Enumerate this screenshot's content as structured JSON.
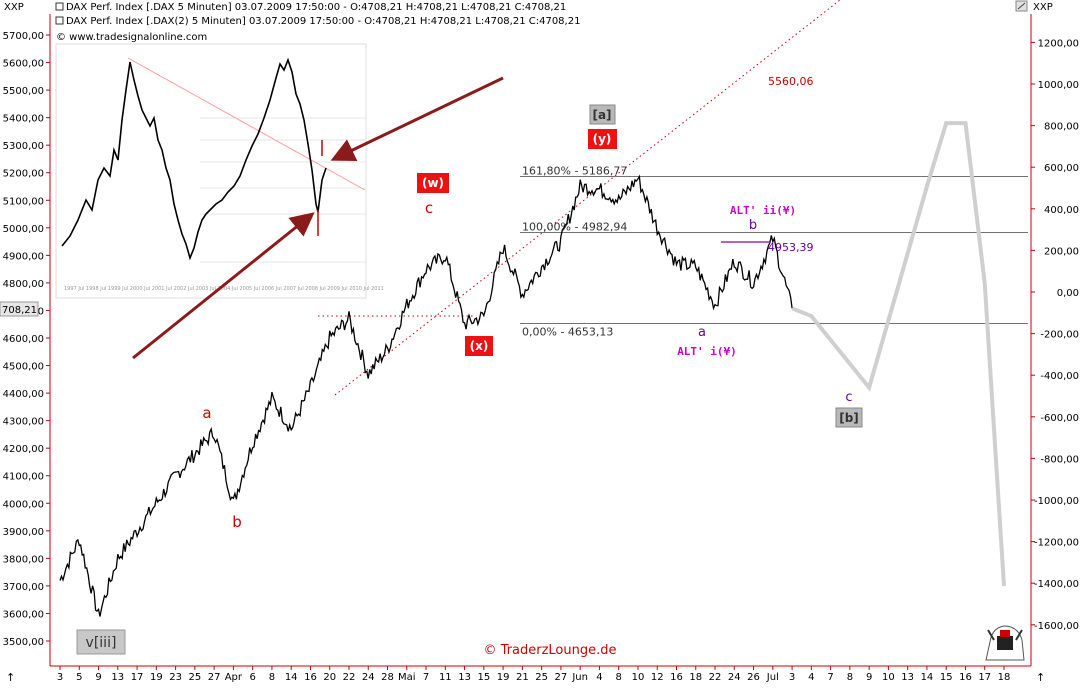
{
  "header": {
    "scale_left_label": "XXP",
    "scale_right_label": "XXP",
    "line1": "DAX Perf. Index [.DAX  5 Minuten] 03.07.2009 17:50:00 - O:4708,21 H:4708,21 L:4708,21 C:4708,21",
    "line2": "DAX Perf. Index [.DAX(2)  5 Minuten] 03.07.2009 17:50:00 - O:4708,21 H:4708,21 L:4708,21 C:4708,21",
    "source": "© www.tradesignalonline.com",
    "last_price_tag": "708,21"
  },
  "watermark": "© TraderzLounge.de",
  "chart_data": {
    "type": "line",
    "y_left": {
      "range": [
        3450,
        5780
      ],
      "ticks": [
        "5700,00",
        "5600,00",
        "5500,00",
        "5400,00",
        "5300,00",
        "5200,00",
        "5100,00",
        "5000,00",
        "4900,00",
        "4800,00",
        "4700,00",
        "4600,00",
        "4500,00",
        "4400,00",
        "4300,00",
        "4200,00",
        "4100,00",
        "4000,00",
        "3900,00",
        "3800,00",
        "3700,00",
        "3600,00",
        "3500,00"
      ]
    },
    "y_right": {
      "ticks": [
        "1200,00",
        "1000,00",
        "800,00",
        "600,00",
        "400,00",
        "200,00",
        "0,00",
        "-200,00",
        "-400,00",
        "-600,00",
        "-800,00",
        "-1000,00",
        "-1200,00",
        "-1400,00",
        "-1600,00"
      ]
    },
    "x_ticks": [
      "3",
      "5",
      "9",
      "13",
      "17",
      "19",
      "23",
      "25",
      "27",
      "Apr",
      "6",
      "8",
      "14",
      "16",
      "20",
      "22",
      "24",
      "28",
      "Mai",
      "7",
      "11",
      "13",
      "15",
      "19",
      "21",
      "25",
      "27",
      "Jun",
      "4",
      "8",
      "10",
      "12",
      "16",
      "18",
      "22",
      "24",
      "26",
      "Jul",
      "3",
      "4",
      "7",
      "8",
      "9",
      "10",
      "13",
      "14",
      "15",
      "16",
      "17",
      "18"
    ],
    "price_path": [
      [
        "3",
        3720
      ],
      [
        "5",
        3870
      ],
      [
        "9",
        3590
      ],
      [
        "13",
        3800
      ],
      [
        "17",
        3900
      ],
      [
        "19",
        4000
      ],
      [
        "23",
        4100
      ],
      [
        "25",
        4180
      ],
      [
        "27",
        4260
      ],
      [
        "Apr",
        4000
      ],
      [
        "6",
        4220
      ],
      [
        "8",
        4380
      ],
      [
        "14",
        4270
      ],
      [
        "16",
        4420
      ],
      [
        "20",
        4600
      ],
      [
        "22",
        4670
      ],
      [
        "24",
        4470
      ],
      [
        "28",
        4560
      ],
      [
        "Mai",
        4720
      ],
      [
        "7",
        4850
      ],
      [
        "11",
        4900
      ],
      [
        "13",
        4650
      ],
      [
        "15",
        4680
      ],
      [
        "19",
        4930
      ],
      [
        "21",
        4760
      ],
      [
        "25",
        4860
      ],
      [
        "27",
        4950
      ],
      [
        "Jun",
        5150
      ],
      [
        "4",
        5140
      ],
      [
        "8",
        5100
      ],
      [
        "10",
        5180
      ],
      [
        "12",
        5000
      ],
      [
        "16",
        4870
      ],
      [
        "18",
        4860
      ],
      [
        "22",
        4720
      ],
      [
        "24",
        4880
      ],
      [
        "26",
        4800
      ],
      [
        "Jul",
        4960
      ],
      [
        "3",
        4708
      ]
    ],
    "forecast_path": [
      [
        "3",
        4708
      ],
      [
        "4",
        4680
      ],
      [
        "9",
        4420
      ],
      [
        "14",
        5150
      ],
      [
        "15",
        5380
      ],
      [
        "16",
        5380
      ],
      [
        "17",
        4800
      ],
      [
        "18",
        3700
      ]
    ],
    "fib_levels": [
      {
        "label": "161,80% - 5186,77",
        "value": 5186.77
      },
      {
        "label": "100,00% - 4982,94",
        "value": 4982.94
      },
      {
        "label": "0,00% - 4653,13",
        "value": 4653.13
      }
    ],
    "level_4953": {
      "label": "4953,39",
      "value": 4953.39
    },
    "target_label": "5560,06",
    "wave_labels": {
      "a_red": "a",
      "b_red": "b",
      "c_red": "c",
      "w_box": "(w)",
      "x_box": "(x)",
      "y_box": "(y)",
      "a_box": "[a]",
      "b_box": "[b]",
      "v_iii_box": "v[iii]",
      "a_purple": "a",
      "b_purple": "b",
      "c_purple": "c",
      "alt_i": "ALT' i(¥)",
      "alt_ii": "ALT' ii(¥)"
    },
    "colors": {
      "price": "#000000",
      "axis_red": "#cc0000",
      "wave_red": "#cc0000",
      "box_red": "#ee1111",
      "box_grey": "#b8b8b8",
      "purple": "#990099",
      "dark_purple": "#660099",
      "fib_line": "#333333",
      "forecast": "#c8c8c8",
      "arrow": "#8b1a1a"
    }
  }
}
